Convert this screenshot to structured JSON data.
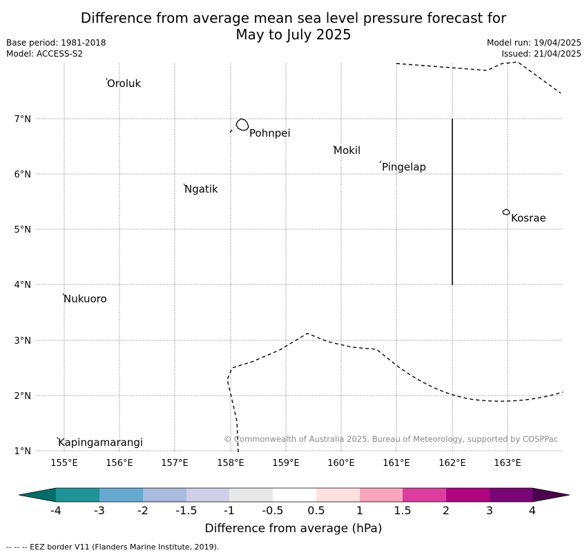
{
  "header": {
    "title_line1": "Difference from average mean sea level pressure forecast for",
    "title_line2": "May to July 2025",
    "base_period": "Base period: 1981-2018",
    "model": "Model: ACCESS-S2",
    "model_run": "Model run: 19/04/2025",
    "issued": "Issued: 21/04/2025"
  },
  "map": {
    "lon_labels": [
      "155°E",
      "156°E",
      "157°E",
      "158°E",
      "159°E",
      "160°E",
      "161°E",
      "162°E",
      "163°E"
    ],
    "lat_labels": [
      "7°N",
      "6°N",
      "5°N",
      "4°N",
      "3°N",
      "2°N",
      "1°N"
    ],
    "places": [
      {
        "name": "Oroluk"
      },
      {
        "name": "Pohnpei"
      },
      {
        "name": "Mokil"
      },
      {
        "name": "Pingelap"
      },
      {
        "name": "Ngatik"
      },
      {
        "name": "Kosrae"
      },
      {
        "name": "Nukuoro"
      },
      {
        "name": "Kapingamarangi"
      }
    ],
    "copyright": "© Commonwealth of Australia 2025, Bureau of Meteorology, supported by COSPPac"
  },
  "colorbar": {
    "label": "Difference from average (hPa)",
    "ticks": [
      "-4",
      "-3",
      "-2",
      "-1.5",
      "-1",
      "-0.5",
      "0.5",
      "1",
      "1.5",
      "2",
      "3",
      "4"
    ],
    "colors": [
      "#006e6a",
      "#1f9498",
      "#66aad2",
      "#a9bbdf",
      "#cfd0e8",
      "#e8e8e8",
      "#ffffff",
      "#ffe0e0",
      "#f9a5bd",
      "#de3da0",
      "#b0057f",
      "#7b0576",
      "#4a004f"
    ]
  },
  "footer": {
    "eez_legend": "--  --  -- EEZ border V11 (Flanders Marine Institute, 2019)."
  }
}
